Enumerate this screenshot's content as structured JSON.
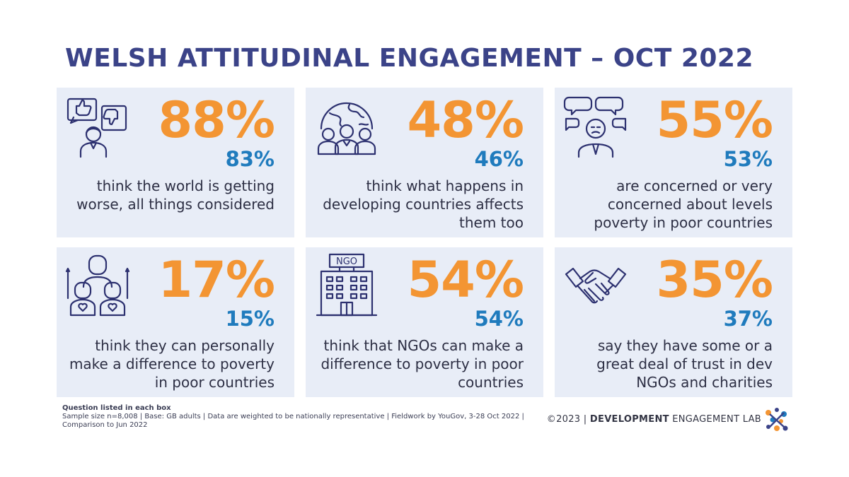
{
  "title": "WELSH ATTITUDINAL ENGAGEMENT – OCT 2022",
  "colors": {
    "title": "#3b4388",
    "headline": "#f39533",
    "comparison": "#1f7bbd",
    "card_bg": "#e8edf7",
    "icon": "#2d3170"
  },
  "cards": [
    {
      "icon": "thumbs-feedback-icon",
      "headline": "88%",
      "comparison": "83%",
      "desc": "think the world is getting worse, all things considered"
    },
    {
      "icon": "globe-people-icon",
      "headline": "48%",
      "comparison": "46%",
      "desc": "think what happens in developing countries affects them too"
    },
    {
      "icon": "worried-person-icon",
      "headline": "55%",
      "comparison": "53%",
      "desc": "are concerned or very concerned about levels poverty in poor countries"
    },
    {
      "icon": "family-hearts-icon",
      "headline": "17%",
      "comparison": "15%",
      "desc": "think they can personally make a difference to poverty in poor countries"
    },
    {
      "icon": "ngo-building-icon",
      "headline": "54%",
      "comparison": "54%",
      "desc": "think that NGOs can make a difference to poverty in poor countries"
    },
    {
      "icon": "handshake-icon",
      "headline": "35%",
      "comparison": "37%",
      "desc": "say they have some or a great deal of trust in dev NGOs and charities"
    }
  ],
  "footer": {
    "heading": "Question listed in each box",
    "notes": "Sample size n=8,008 | Base: GB adults | Data are weighted to be nationally representative | Fieldwork by YouGov, 3-28 Oct 2022 | Comparison to Jun 2022",
    "credit_prefix": "©2023 | ",
    "credit_org_bold": "DEVELOPMENT",
    "credit_org_rest": " ENGAGEMENT LAB",
    "ngo_sign": "NGO"
  }
}
